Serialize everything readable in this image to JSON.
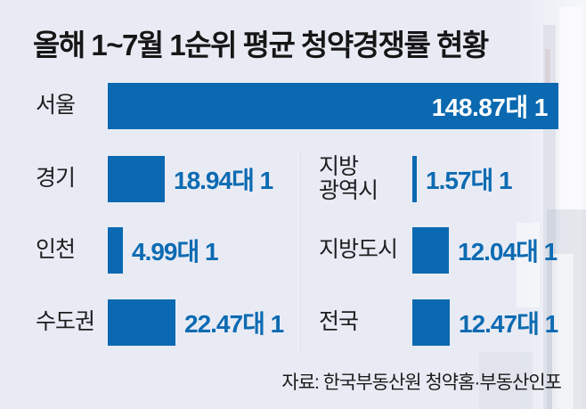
{
  "title": "올해 1~7월 1순위 평균 청약경쟁률 현황",
  "source": "자료: 한국부동산원 청약홈·부동산인포",
  "colors": {
    "background": "#e9ebf4",
    "bar": "#0a69b0",
    "value_text": "#0c6bb2",
    "value_text_on_bar": "#ffffff",
    "title_text": "#161616"
  },
  "chart_data": {
    "type": "bar",
    "title": "올해 1~7월 1순위 평균 청약경쟁률 현황",
    "unit_suffix": "대 1",
    "max_value": 148.87,
    "orientation": "horizontal",
    "items": [
      {
        "label": "서울",
        "value": 148.87,
        "display": "148.87대 1",
        "column": "full"
      },
      {
        "label": "경기",
        "value": 18.94,
        "display": "18.94대 1",
        "column": "left"
      },
      {
        "label": "인천",
        "value": 4.99,
        "display": "4.99대 1",
        "column": "left"
      },
      {
        "label": "수도권",
        "value": 22.47,
        "display": "22.47대 1",
        "column": "left"
      },
      {
        "label": "지방\n광역시",
        "value": 1.57,
        "display": "1.57대 1",
        "column": "right"
      },
      {
        "label": "지방도시",
        "value": 12.04,
        "display": "12.04대 1",
        "column": "right"
      },
      {
        "label": "전국",
        "value": 12.47,
        "display": "12.47대 1",
        "column": "right"
      }
    ]
  }
}
